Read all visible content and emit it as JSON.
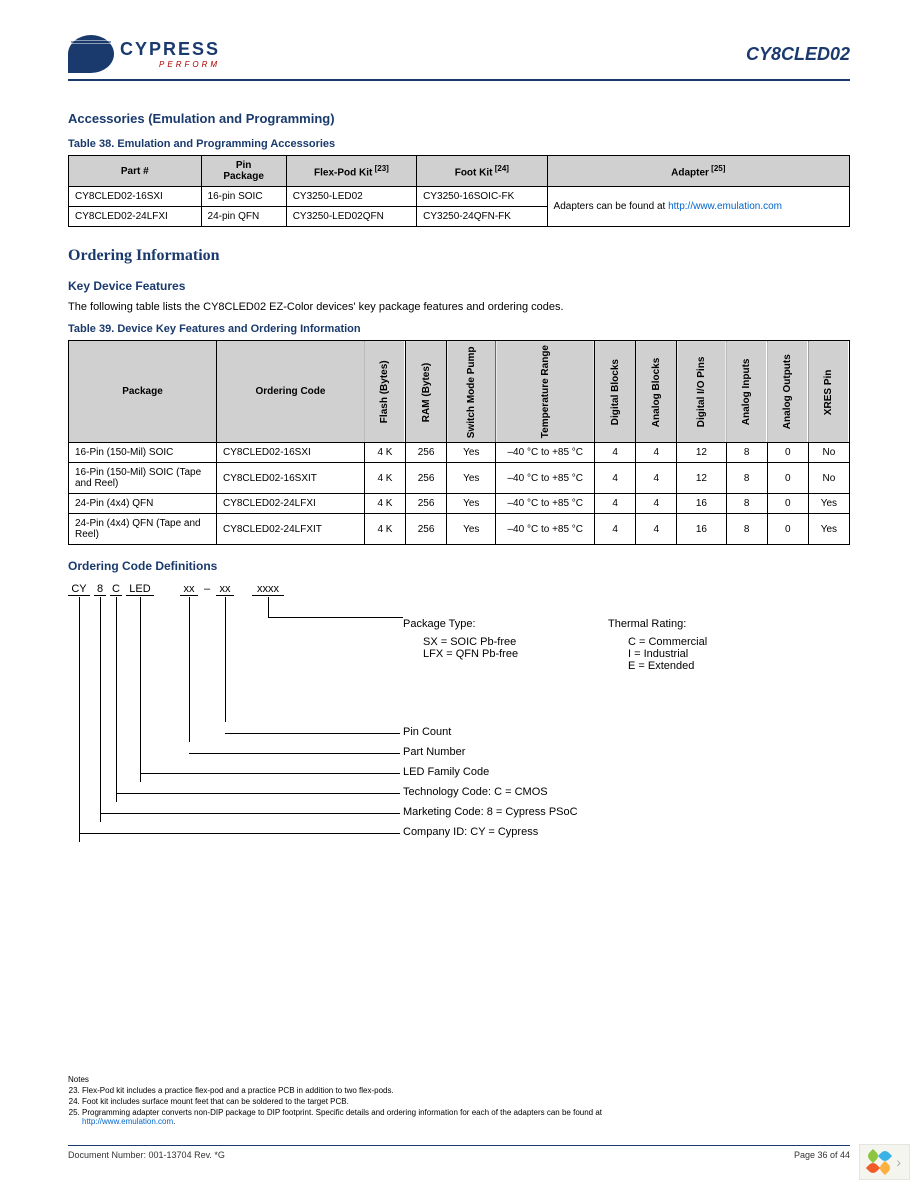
{
  "header": {
    "logo_text": "CYPRESS",
    "logo_sub": "PERFORM",
    "part": "CY8CLED02"
  },
  "section1": {
    "title": "Accessories (Emulation and Programming)",
    "table_caption": "Table 38.  Emulation and Programming Accessories",
    "columns": [
      "Part #",
      "Pin Package",
      "Flex-Pod Kit",
      "Foot Kit",
      "Adapter"
    ],
    "col_sup": [
      "",
      "",
      "[23]",
      "[24]",
      "[25]"
    ],
    "rows": [
      [
        "CY8CLED02-16SXI",
        "16-pin SOIC",
        "CY3250-LED02",
        "CY3250-16SOIC-FK"
      ],
      [
        "CY8CLED02-24LFXI",
        "24-pin QFN",
        "CY3250-LED02QFN",
        "CY3250-24QFN-FK"
      ]
    ],
    "adapter_text": "Adapters can be found at",
    "adapter_link": "http://www.emulation.com"
  },
  "ordering": {
    "title": "Ordering Information",
    "sub1": "Key Device Features",
    "intro": "The following table lists the CY8CLED02 EZ-Color devices' key package features and ordering codes.",
    "table_caption": "Table 39.  Device Key Features and Ordering Information",
    "columns": [
      "Package",
      "Ordering Code",
      "Flash (Bytes)",
      "RAM (Bytes)",
      "Switch Mode Pump",
      "Temperature Range",
      "Digital Blocks",
      "Analog Blocks",
      "Digital I/O Pins",
      "Analog Inputs",
      "Analog Outputs",
      "XRES Pin"
    ],
    "rows": [
      {
        "pkg": "16-Pin (150-Mil) SOIC",
        "code": "CY8CLED02-16SXI",
        "flash": "4 K",
        "ram": "256",
        "smp": "Yes",
        "temp": "–40 °C to +85 °C",
        "db": "4",
        "ab": "4",
        "dio": "12",
        "ai": "8",
        "ao": "0",
        "xres": "No"
      },
      {
        "pkg": "16-Pin (150-Mil) SOIC (Tape and Reel)",
        "code": "CY8CLED02-16SXIT",
        "flash": "4 K",
        "ram": "256",
        "smp": "Yes",
        "temp": "–40 °C to +85 °C",
        "db": "4",
        "ab": "4",
        "dio": "12",
        "ai": "8",
        "ao": "0",
        "xres": "No"
      },
      {
        "pkg": "24-Pin (4x4) QFN",
        "code": "CY8CLED02-24LFXI",
        "flash": "4 K",
        "ram": "256",
        "smp": "Yes",
        "temp": "–40 °C to +85 °C",
        "db": "4",
        "ab": "4",
        "dio": "16",
        "ai": "8",
        "ao": "0",
        "xres": "Yes"
      },
      {
        "pkg": "24-Pin (4x4) QFN (Tape and Reel)",
        "code": "CY8CLED02-24LFXIT",
        "flash": "4 K",
        "ram": "256",
        "smp": "Yes",
        "temp": "–40 °C to +85 °C",
        "db": "4",
        "ab": "4",
        "dio": "16",
        "ai": "8",
        "ao": "0",
        "xres": "Yes"
      }
    ]
  },
  "ocd": {
    "title": "Ordering Code Definitions",
    "segments": [
      "CY",
      "8",
      "C",
      "LED",
      "",
      "xx",
      "–",
      "xx",
      "",
      "xxxx"
    ],
    "package": {
      "title": "Package Type:",
      "lines": [
        "SX = SOIC Pb-free",
        "LFX = QFN Pb-free"
      ]
    },
    "thermal": {
      "title": "Thermal Rating:",
      "lines": [
        "C = Commercial",
        "I = Industrial",
        "E = Extended"
      ]
    },
    "labels": [
      "Pin Count",
      "Part Number",
      "LED Family Code",
      "Technology Code: C = CMOS",
      "Marketing Code: 8 = Cypress PSoC",
      "Company ID: CY = Cypress"
    ]
  },
  "notes": {
    "title": "Notes",
    "items": [
      {
        "n": "23",
        "t": "Flex-Pod kit includes a practice flex-pod and a practice PCB in addition to two flex-pods."
      },
      {
        "n": "24",
        "t": "Foot kit includes surface mount feet that can be soldered to the target PCB."
      },
      {
        "n": "25",
        "t": "Programming adapter converts non-DIP package to DIP footprint. Specific details and ordering information for each of the adapters can be found at"
      }
    ],
    "note_link": "http://www.emulation.com"
  },
  "footer": {
    "doc": "Document Number: 001-13704  Rev. *G",
    "page": "Page 36 of 44"
  },
  "corner_colors": [
    "#8cc63f",
    "#3bb2e5",
    "#f15a29",
    "#fcb040"
  ]
}
